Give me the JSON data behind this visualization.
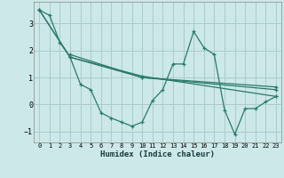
{
  "xlabel": "Humidex (Indice chaleur)",
  "background_color": "#cce8e8",
  "line_color": "#2a7a6a",
  "grid_color": "#aacccc",
  "xlim": [
    -0.5,
    23.5
  ],
  "ylim": [
    -1.4,
    3.8
  ],
  "yticks": [
    -1,
    0,
    1,
    2,
    3
  ],
  "xticks": [
    0,
    1,
    2,
    3,
    4,
    5,
    6,
    7,
    8,
    9,
    10,
    11,
    12,
    13,
    14,
    15,
    16,
    17,
    18,
    19,
    20,
    21,
    22,
    23
  ],
  "lines": [
    {
      "x": [
        0,
        1,
        2,
        3,
        4,
        5,
        6,
        7,
        8,
        9,
        10,
        11,
        12,
        13,
        14,
        15,
        16,
        17,
        18,
        19,
        20,
        21,
        22,
        23
      ],
      "y": [
        3.5,
        3.3,
        2.3,
        1.75,
        0.75,
        0.55,
        -0.3,
        -0.5,
        -0.65,
        -0.8,
        -0.65,
        0.15,
        0.55,
        1.5,
        1.5,
        2.7,
        2.1,
        1.85,
        -0.2,
        -1.1,
        -0.15,
        -0.15,
        0.1,
        0.3
      ]
    },
    {
      "x": [
        0,
        3,
        10,
        23
      ],
      "y": [
        3.5,
        1.75,
        1.05,
        0.3
      ]
    },
    {
      "x": [
        0,
        3,
        10,
        23
      ],
      "y": [
        3.5,
        1.75,
        1.0,
        0.55
      ]
    },
    {
      "x": [
        3,
        10,
        23
      ],
      "y": [
        1.85,
        1.0,
        0.65
      ]
    }
  ]
}
